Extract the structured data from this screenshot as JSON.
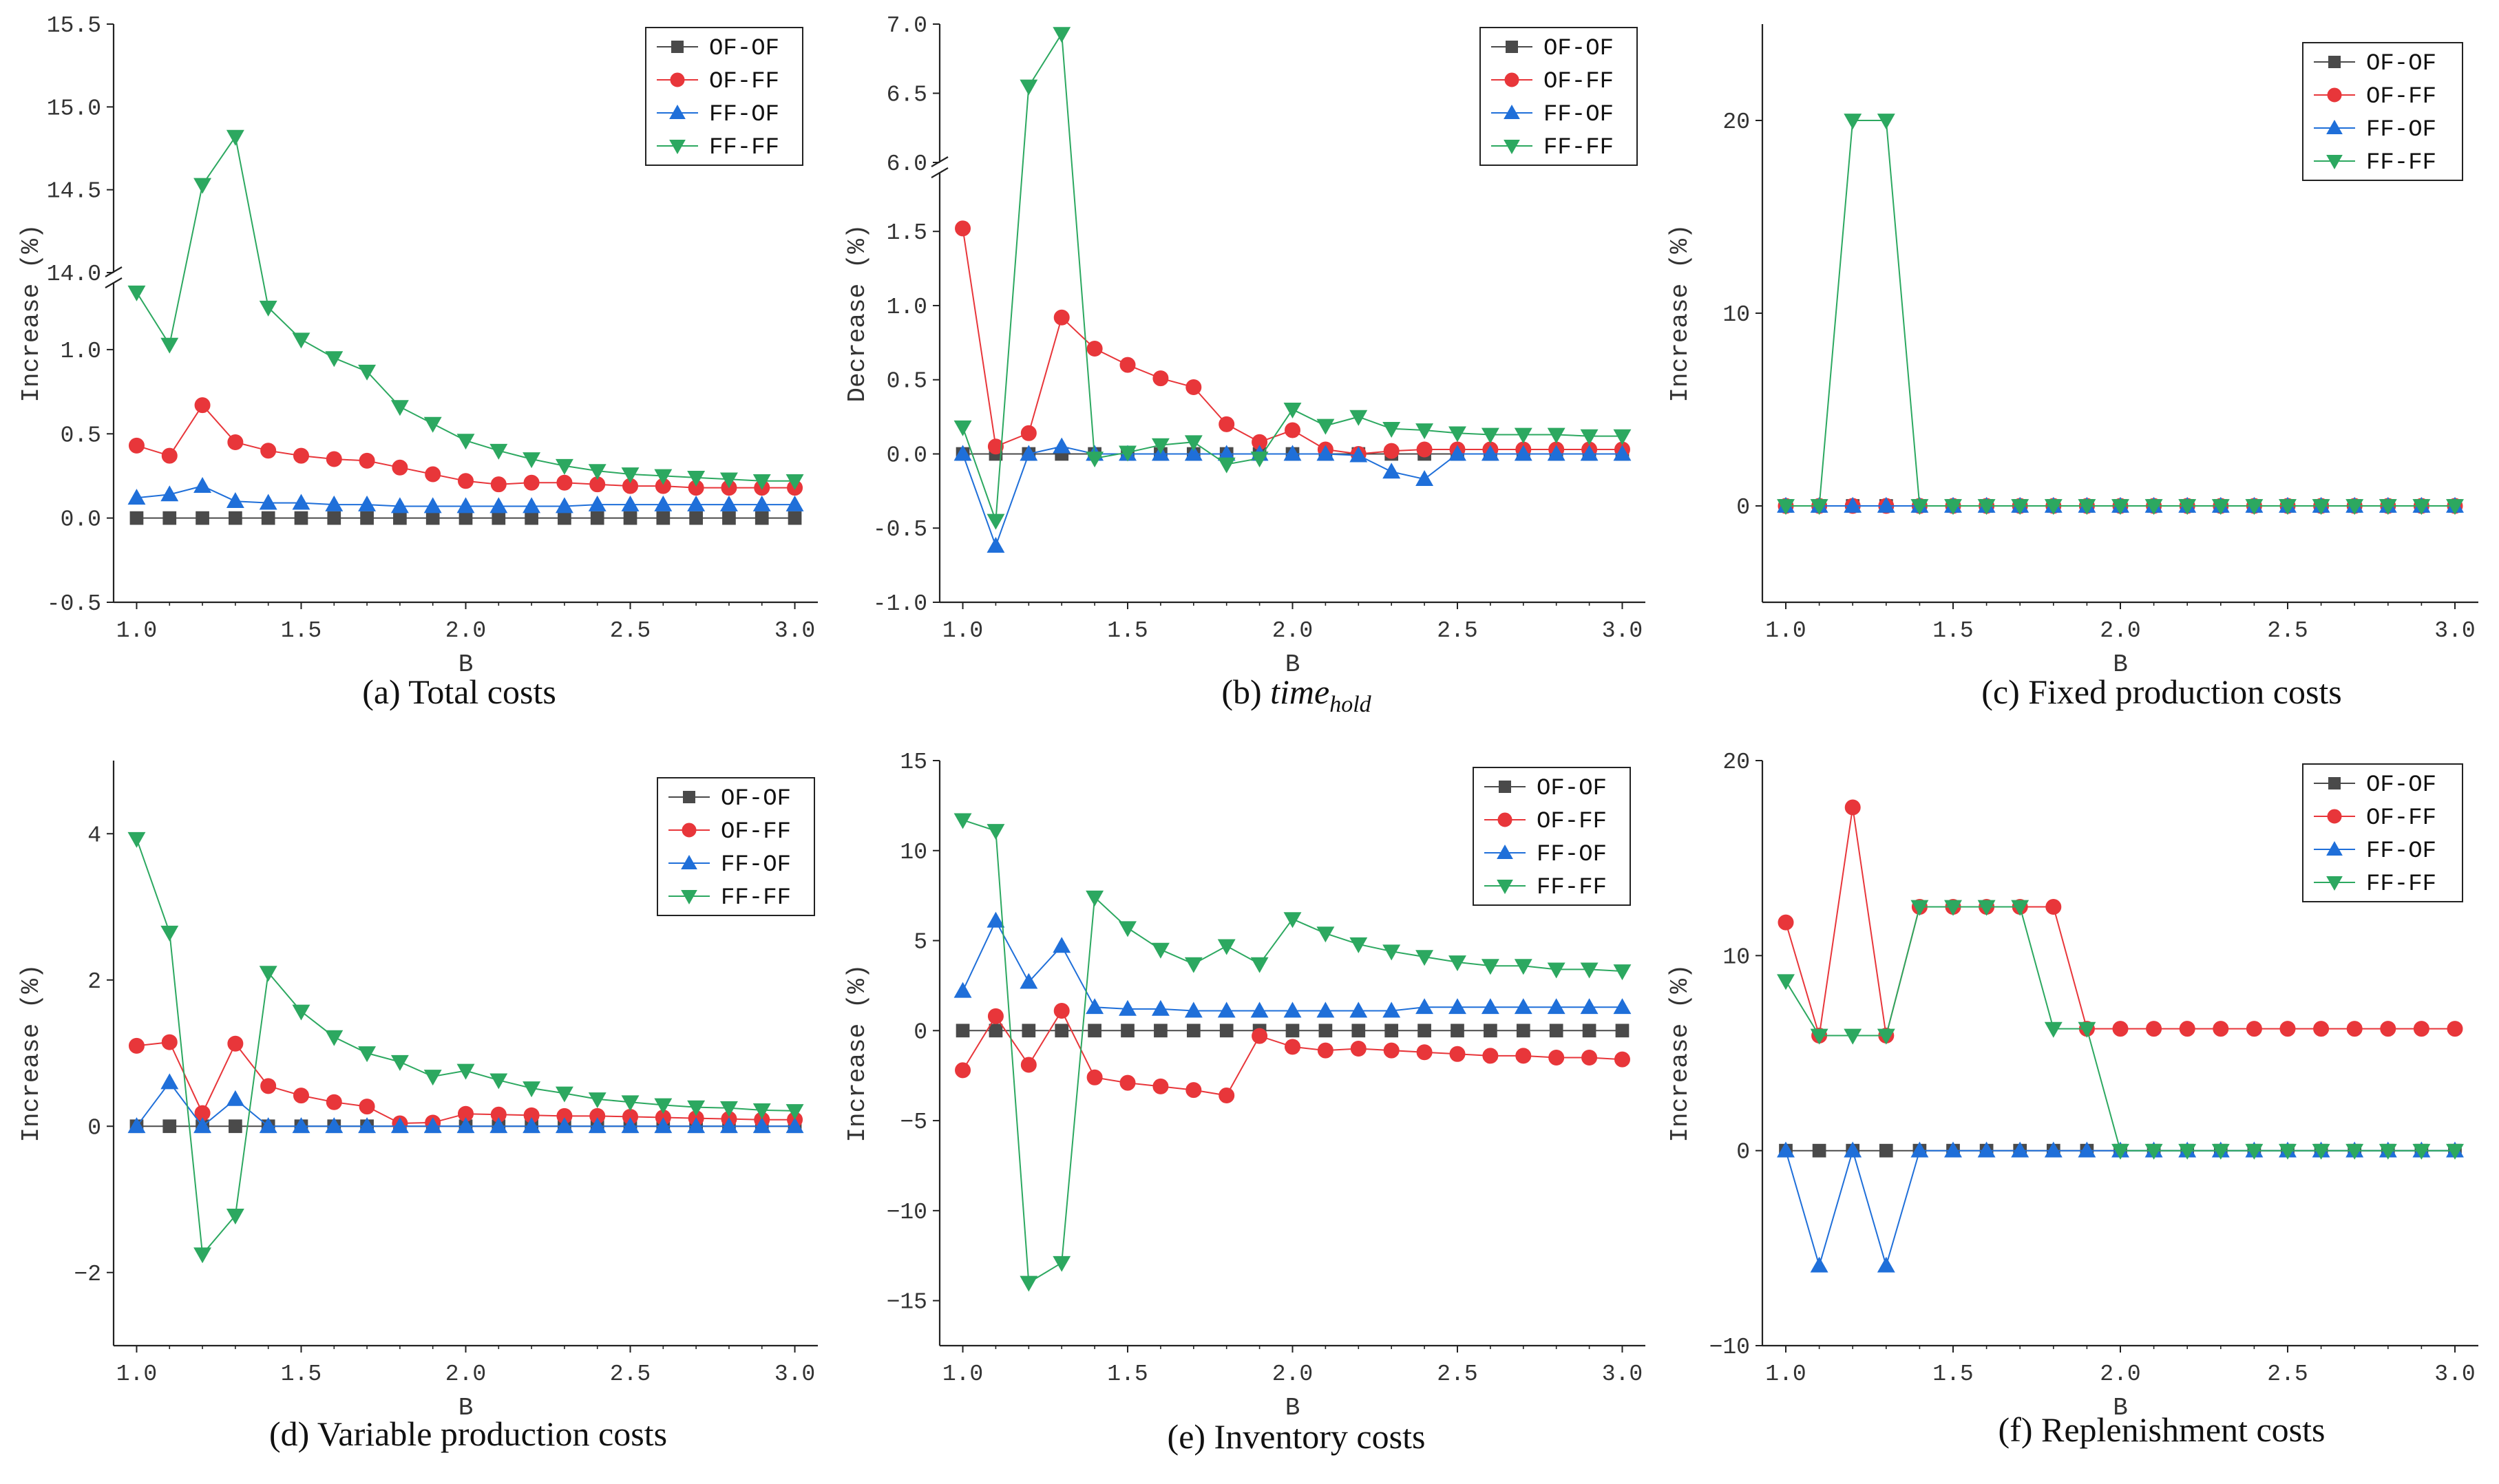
{
  "series_names": [
    "OF-OF",
    "OF-FF",
    "FF-OF",
    "FF-FF"
  ],
  "series_colors": [
    "#4a4a4a",
    "#e8363a",
    "#1f6fd9",
    "#2ca860"
  ],
  "series_markers": [
    "square",
    "circle",
    "triangle-up",
    "triangle-down"
  ],
  "chart_data": [
    {
      "type": "line",
      "caption": "(a) Total costs",
      "title": "",
      "xlabel": "B",
      "ylabel": "Increase (%)",
      "x": [
        1.0,
        1.1,
        1.2,
        1.3,
        1.4,
        1.5,
        1.6,
        1.7,
        1.8,
        1.9,
        2.0,
        2.1,
        2.2,
        2.3,
        2.4,
        2.5,
        2.6,
        2.7,
        2.8,
        2.9,
        3.0
      ],
      "xlim": [
        0.93,
        3.07
      ],
      "xticks": [
        1.0,
        1.5,
        2.0,
        2.5,
        3.0
      ],
      "xtick_labels": [
        "1.0",
        "1.5",
        "2.0",
        "2.5",
        "3.0"
      ],
      "y_broken": true,
      "ylim_lower": [
        -0.5,
        1.4
      ],
      "ylim_upper": [
        14.0,
        15.5
      ],
      "yticks_lower": [
        -0.5,
        0.0,
        0.5,
        1.0
      ],
      "ytick_labels_lower": [
        "-0.5",
        "0.0",
        "0.5",
        "1.0"
      ],
      "yticks_upper": [
        14.0,
        14.5,
        15.0,
        15.5
      ],
      "ytick_labels_upper": [
        "14.0",
        "14.5",
        "15.0",
        "15.5"
      ],
      "legend": "top-right",
      "series": [
        {
          "name": "OF-OF",
          "values": [
            0,
            0,
            0,
            0,
            0,
            0,
            0,
            0,
            0,
            0,
            0,
            0,
            0,
            0,
            0,
            0,
            0,
            0,
            0,
            0,
            0
          ]
        },
        {
          "name": "OF-FF",
          "values": [
            0.43,
            0.37,
            0.67,
            0.45,
            0.4,
            0.37,
            0.35,
            0.34,
            0.3,
            0.26,
            0.22,
            0.2,
            0.21,
            0.21,
            0.2,
            0.19,
            0.19,
            0.18,
            0.18,
            0.18,
            0.18
          ]
        },
        {
          "name": "FF-OF",
          "values": [
            0.12,
            0.14,
            0.19,
            0.1,
            0.09,
            0.09,
            0.08,
            0.08,
            0.07,
            0.07,
            0.07,
            0.07,
            0.07,
            0.07,
            0.08,
            0.08,
            0.08,
            0.08,
            0.08,
            0.08,
            0.08
          ]
        },
        {
          "name": "FF-FF",
          "values": [
            1.34,
            1.03,
            14.53,
            14.82,
            1.25,
            1.06,
            0.95,
            0.87,
            0.66,
            0.56,
            0.46,
            0.4,
            0.35,
            0.31,
            0.28,
            0.26,
            0.25,
            0.24,
            0.23,
            0.22,
            0.22
          ]
        }
      ]
    },
    {
      "type": "line",
      "caption": "(b) time",
      "caption_sub": "hold",
      "title": "",
      "xlabel": "B",
      "ylabel": "Decrease (%)",
      "x": [
        1.0,
        1.1,
        1.2,
        1.3,
        1.4,
        1.5,
        1.6,
        1.7,
        1.8,
        1.9,
        2.0,
        2.1,
        2.2,
        2.3,
        2.4,
        2.5,
        2.6,
        2.7,
        2.8,
        2.9,
        3.0
      ],
      "xlim": [
        0.93,
        3.07
      ],
      "xticks": [
        1.0,
        1.5,
        2.0,
        2.5,
        3.0
      ],
      "xtick_labels": [
        "1.0",
        "1.5",
        "2.0",
        "2.5",
        "3.0"
      ],
      "y_broken": true,
      "ylim_lower": [
        -1.0,
        1.9
      ],
      "ylim_upper": [
        6.0,
        7.0
      ],
      "yticks_lower": [
        -1.0,
        -0.5,
        0.0,
        0.5,
        1.0,
        1.5
      ],
      "ytick_labels_lower": [
        "-1.0",
        "-0.5",
        "0.0",
        "0.5",
        "1.0",
        "1.5"
      ],
      "yticks_upper": [
        6.0,
        6.5,
        7.0
      ],
      "ytick_labels_upper": [
        "6.0",
        "6.5",
        "7.0"
      ],
      "legend": "top-right",
      "series": [
        {
          "name": "OF-OF",
          "values": [
            0,
            0,
            0,
            0,
            0,
            0,
            0,
            0,
            0,
            0,
            0,
            0,
            0,
            0,
            0,
            0,
            0,
            0,
            0,
            0,
            0
          ]
        },
        {
          "name": "OF-FF",
          "values": [
            1.52,
            0.05,
            0.14,
            0.92,
            0.71,
            0.6,
            0.51,
            0.45,
            0.2,
            0.08,
            0.16,
            0.03,
            0.0,
            0.02,
            0.03,
            0.03,
            0.03,
            0.03,
            0.03,
            0.03,
            0.03
          ]
        },
        {
          "name": "FF-OF",
          "values": [
            0.0,
            -0.62,
            0.0,
            0.05,
            0.0,
            0.0,
            0.0,
            0.0,
            0.0,
            0.0,
            0.0,
            0.0,
            -0.01,
            -0.12,
            -0.17,
            0.0,
            0.0,
            0.0,
            0.0,
            0.0,
            0.0
          ]
        },
        {
          "name": "FF-FF",
          "values": [
            0.18,
            -0.45,
            6.55,
            6.93,
            -0.03,
            0.01,
            0.06,
            0.08,
            -0.07,
            -0.03,
            0.3,
            0.19,
            0.25,
            0.17,
            0.16,
            0.14,
            0.13,
            0.13,
            0.13,
            0.12,
            0.12
          ]
        }
      ]
    },
    {
      "type": "line",
      "caption": "(c) Fixed production costs",
      "title": "",
      "xlabel": "B",
      "ylabel": "Increase (%)",
      "x": [
        1.0,
        1.1,
        1.2,
        1.3,
        1.4,
        1.5,
        1.6,
        1.7,
        1.8,
        1.9,
        2.0,
        2.1,
        2.2,
        2.3,
        2.4,
        2.5,
        2.6,
        2.7,
        2.8,
        2.9,
        3.0
      ],
      "xlim": [
        0.93,
        3.07
      ],
      "xticks": [
        1.0,
        1.5,
        2.0,
        2.5,
        3.0
      ],
      "xtick_labels": [
        "1.0",
        "1.5",
        "2.0",
        "2.5",
        "3.0"
      ],
      "y_broken": false,
      "ylim": [
        -5,
        25
      ],
      "yticks": [
        0,
        10,
        20
      ],
      "ytick_labels": [
        "0",
        "10",
        "20"
      ],
      "legend": "top-right",
      "series": [
        {
          "name": "OF-OF",
          "values": [
            0,
            0,
            0,
            0,
            0,
            0,
            0,
            0,
            0,
            0,
            0,
            0,
            0,
            0,
            0,
            0,
            0,
            0,
            0,
            0,
            0
          ]
        },
        {
          "name": "OF-FF",
          "values": [
            0,
            0,
            0,
            0,
            0,
            0,
            0,
            0,
            0,
            0,
            0,
            0,
            0,
            0,
            0,
            0,
            0,
            0,
            0,
            0,
            0
          ]
        },
        {
          "name": "FF-OF",
          "values": [
            0,
            0,
            0,
            0,
            0,
            0,
            0,
            0,
            0,
            0,
            0,
            0,
            0,
            0,
            0,
            0,
            0,
            0,
            0,
            0,
            0
          ]
        },
        {
          "name": "FF-FF",
          "values": [
            0,
            0,
            20,
            20,
            0,
            0,
            0,
            0,
            0,
            0,
            0,
            0,
            0,
            0,
            0,
            0,
            0,
            0,
            0,
            0,
            0
          ]
        }
      ]
    },
    {
      "type": "line",
      "caption": "(d) Variable production costs",
      "title": "",
      "xlabel": "B",
      "ylabel": "Increase (%)",
      "x": [
        1.0,
        1.1,
        1.2,
        1.3,
        1.4,
        1.5,
        1.6,
        1.7,
        1.8,
        1.9,
        2.0,
        2.1,
        2.2,
        2.3,
        2.4,
        2.5,
        2.6,
        2.7,
        2.8,
        2.9,
        3.0
      ],
      "xlim": [
        0.93,
        3.07
      ],
      "xticks": [
        1.0,
        1.5,
        2.0,
        2.5,
        3.0
      ],
      "xtick_labels": [
        "1.0",
        "1.5",
        "2.0",
        "2.5",
        "3.0"
      ],
      "y_broken": false,
      "ylim": [
        -3,
        5
      ],
      "yticks": [
        -2,
        0,
        2,
        4
      ],
      "ytick_labels": [
        "−2",
        "0",
        "2",
        "4"
      ],
      "legend": "top-right",
      "series": [
        {
          "name": "OF-OF",
          "values": [
            0,
            0,
            0,
            0,
            0,
            0,
            0,
            0,
            0,
            0,
            0,
            0,
            0,
            0,
            0,
            0,
            0,
            0,
            0,
            0,
            0
          ]
        },
        {
          "name": "OF-FF",
          "values": [
            1.1,
            1.15,
            0.18,
            1.13,
            0.55,
            0.42,
            0.33,
            0.27,
            0.04,
            0.05,
            0.17,
            0.16,
            0.15,
            0.14,
            0.14,
            0.13,
            0.12,
            0.11,
            0.1,
            0.09,
            0.09
          ]
        },
        {
          "name": "FF-OF",
          "values": [
            0.0,
            0.6,
            0.0,
            0.37,
            0.0,
            0.0,
            0.0,
            0.0,
            0.0,
            0.0,
            0.0,
            0.0,
            0.0,
            0.0,
            0.0,
            0.0,
            0.0,
            0.0,
            0.0,
            0.0,
            0.0
          ]
        },
        {
          "name": "FF-FF",
          "values": [
            3.93,
            2.65,
            -1.75,
            -1.22,
            2.1,
            1.57,
            1.22,
            1.0,
            0.88,
            0.68,
            0.76,
            0.63,
            0.52,
            0.45,
            0.37,
            0.33,
            0.29,
            0.26,
            0.25,
            0.22,
            0.21
          ]
        }
      ]
    },
    {
      "type": "line",
      "caption": "(e) Inventory costs",
      "title": "",
      "xlabel": "B",
      "ylabel": "Increase (%)",
      "x": [
        1.0,
        1.1,
        1.2,
        1.3,
        1.4,
        1.5,
        1.6,
        1.7,
        1.8,
        1.9,
        2.0,
        2.1,
        2.2,
        2.3,
        2.4,
        2.5,
        2.6,
        2.7,
        2.8,
        2.9,
        3.0
      ],
      "xlim": [
        0.93,
        3.07
      ],
      "xticks": [
        1.0,
        1.5,
        2.0,
        2.5,
        3.0
      ],
      "xtick_labels": [
        "1.0",
        "1.5",
        "2.0",
        "2.5",
        "3.0"
      ],
      "y_broken": false,
      "ylim": [
        -17.5,
        15
      ],
      "yticks": [
        -15,
        -10,
        -5,
        0,
        5,
        10,
        15
      ],
      "ytick_labels": [
        "−15",
        "−10",
        "−5",
        "0",
        "5",
        "10",
        "15"
      ],
      "legend": "top-right",
      "series": [
        {
          "name": "OF-OF",
          "values": [
            0,
            0,
            0,
            0,
            0,
            0,
            0,
            0,
            0,
            0,
            0,
            0,
            0,
            0,
            0,
            0,
            0,
            0,
            0,
            0,
            0
          ]
        },
        {
          "name": "OF-FF",
          "values": [
            -2.2,
            0.8,
            -1.9,
            1.1,
            -2.6,
            -2.9,
            -3.1,
            -3.3,
            -3.6,
            -0.3,
            -0.9,
            -1.1,
            -1.0,
            -1.1,
            -1.2,
            -1.3,
            -1.4,
            -1.4,
            -1.5,
            -1.5,
            -1.6
          ]
        },
        {
          "name": "FF-OF",
          "values": [
            2.2,
            6.1,
            2.7,
            4.7,
            1.3,
            1.2,
            1.2,
            1.1,
            1.1,
            1.1,
            1.1,
            1.1,
            1.1,
            1.1,
            1.3,
            1.3,
            1.3,
            1.3,
            1.3,
            1.3,
            1.3
          ]
        },
        {
          "name": "FF-FF",
          "values": [
            11.7,
            11.1,
            -14.0,
            -12.9,
            7.4,
            5.7,
            4.5,
            3.7,
            4.7,
            3.7,
            6.2,
            5.4,
            4.8,
            4.4,
            4.1,
            3.8,
            3.6,
            3.6,
            3.4,
            3.4,
            3.3
          ]
        }
      ]
    },
    {
      "type": "line",
      "caption": "(f) Replenishment costs",
      "title": "",
      "xlabel": "B",
      "ylabel": "Increase (%)",
      "x": [
        1.0,
        1.1,
        1.2,
        1.3,
        1.4,
        1.5,
        1.6,
        1.7,
        1.8,
        1.9,
        2.0,
        2.1,
        2.2,
        2.3,
        2.4,
        2.5,
        2.6,
        2.7,
        2.8,
        2.9,
        3.0
      ],
      "xlim": [
        0.93,
        3.07
      ],
      "xticks": [
        1.0,
        1.5,
        2.0,
        2.5,
        3.0
      ],
      "xtick_labels": [
        "1.0",
        "1.5",
        "2.0",
        "2.5",
        "3.0"
      ],
      "y_broken": false,
      "ylim": [
        -10,
        20
      ],
      "yticks": [
        -10,
        0,
        10,
        20
      ],
      "ytick_labels": [
        "−10",
        "0",
        "10",
        "20"
      ],
      "legend": "top-right",
      "series": [
        {
          "name": "OF-OF",
          "values": [
            0,
            0,
            0,
            0,
            0,
            0,
            0,
            0,
            0,
            0,
            0,
            0,
            0,
            0,
            0,
            0,
            0,
            0,
            0,
            0,
            0
          ]
        },
        {
          "name": "OF-FF",
          "values": [
            11.7,
            5.9,
            17.6,
            5.9,
            12.5,
            12.5,
            12.5,
            12.5,
            12.5,
            6.25,
            6.25,
            6.25,
            6.25,
            6.25,
            6.25,
            6.25,
            6.25,
            6.25,
            6.25,
            6.25,
            6.25
          ]
        },
        {
          "name": "FF-OF",
          "values": [
            0.0,
            -5.9,
            0.0,
            -5.9,
            0.0,
            0.0,
            0.0,
            0.0,
            0.0,
            0.0,
            0.0,
            0.0,
            0.0,
            0.0,
            0.0,
            0.0,
            0.0,
            0.0,
            0.0,
            0.0,
            0.0
          ]
        },
        {
          "name": "FF-FF",
          "values": [
            8.7,
            5.9,
            5.9,
            5.9,
            12.5,
            12.5,
            12.5,
            12.5,
            6.25,
            6.25,
            0.0,
            0.0,
            0.0,
            0.0,
            0.0,
            0.0,
            0.0,
            0.0,
            0.0,
            0.0,
            0.0
          ]
        }
      ]
    }
  ]
}
